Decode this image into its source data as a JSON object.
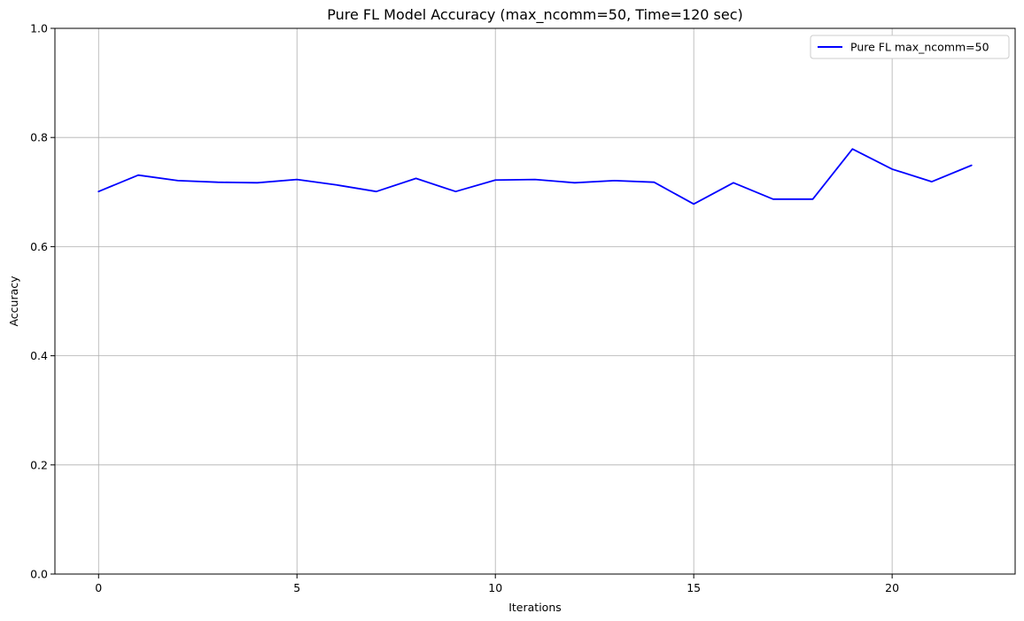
{
  "chart_data": {
    "type": "line",
    "title": "Pure FL Model Accuracy (max_ncomm=50, Time=120 sec)",
    "xlabel": "Iterations",
    "ylabel": "Accuracy",
    "xlim": [
      -1.1,
      23.1
    ],
    "ylim": [
      0,
      1
    ],
    "xticks": [
      0,
      5,
      10,
      15,
      20
    ],
    "yticks": [
      0.0,
      0.2,
      0.4,
      0.6,
      0.8,
      1.0
    ],
    "xtick_labels": [
      "0",
      "5",
      "10",
      "15",
      "20"
    ],
    "ytick_labels": [
      "0.0",
      "0.2",
      "0.4",
      "0.6",
      "0.8",
      "1.0"
    ],
    "grid": true,
    "legend_position": "top-right",
    "series": [
      {
        "name": "Pure FL max_ncomm=50",
        "color": "#0000ff",
        "x": [
          0,
          1,
          2,
          3,
          4,
          5,
          6,
          7,
          8,
          9,
          10,
          11,
          12,
          13,
          14,
          15,
          16,
          17,
          18,
          19,
          20,
          21,
          22
        ],
        "values": [
          0.701,
          0.731,
          0.721,
          0.718,
          0.717,
          0.723,
          0.713,
          0.701,
          0.725,
          0.701,
          0.722,
          0.723,
          0.717,
          0.721,
          0.718,
          0.678,
          0.717,
          0.687,
          0.687,
          0.779,
          0.742,
          0.719,
          0.749
        ]
      }
    ]
  }
}
